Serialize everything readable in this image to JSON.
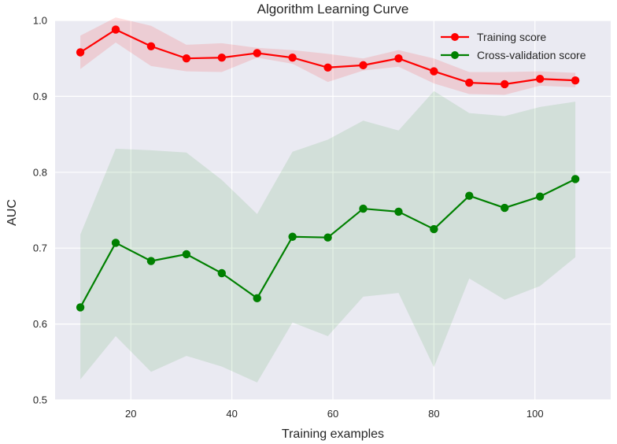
{
  "chart_data": {
    "type": "line",
    "title": "Algorithm Learning Curve",
    "xlabel": "Training examples",
    "ylabel": "AUC",
    "xlim": [
      5,
      115
    ],
    "ylim": [
      0.5,
      1.0
    ],
    "xticks": [
      20,
      40,
      60,
      80,
      100
    ],
    "yticks": [
      0.5,
      0.6,
      0.7,
      0.8,
      0.9,
      1.0
    ],
    "xtick_labels": [
      "20",
      "40",
      "60",
      "80",
      "100"
    ],
    "ytick_labels": [
      "0.5",
      "0.6",
      "0.7",
      "0.8",
      "0.9",
      "1.0"
    ],
    "grid": true,
    "legend_position": "top-right",
    "x": [
      10,
      17,
      24,
      31,
      38,
      45,
      52,
      59,
      66,
      73,
      80,
      87,
      94,
      101,
      108
    ],
    "series": [
      {
        "name": "Training score",
        "color": "#ff0000",
        "band_color": "#ff0000",
        "values": [
          0.958,
          0.988,
          0.966,
          0.95,
          0.951,
          0.957,
          0.951,
          0.938,
          0.941,
          0.95,
          0.933,
          0.918,
          0.916,
          0.923,
          0.921
        ],
        "upper": [
          0.98,
          1.004,
          0.993,
          0.968,
          0.97,
          0.964,
          0.961,
          0.956,
          0.95,
          0.961,
          0.95,
          0.932,
          0.932,
          0.933,
          0.931
        ],
        "lower": [
          0.936,
          0.971,
          0.94,
          0.933,
          0.932,
          0.951,
          0.943,
          0.919,
          0.934,
          0.939,
          0.917,
          0.903,
          0.902,
          0.914,
          0.912
        ]
      },
      {
        "name": "Cross-validation score",
        "color": "#008000",
        "band_color": "#008000",
        "values": [
          0.622,
          0.707,
          0.683,
          0.692,
          0.667,
          0.634,
          0.715,
          0.714,
          0.752,
          0.748,
          0.725,
          0.769,
          0.753,
          0.768,
          0.791
        ],
        "upper": [
          0.718,
          0.831,
          0.829,
          0.826,
          0.79,
          0.745,
          0.827,
          0.843,
          0.868,
          0.855,
          0.907,
          0.878,
          0.874,
          0.886,
          0.893
        ],
        "lower": [
          0.527,
          0.584,
          0.537,
          0.558,
          0.544,
          0.523,
          0.602,
          0.584,
          0.636,
          0.641,
          0.543,
          0.66,
          0.632,
          0.65,
          0.688
        ]
      }
    ]
  }
}
